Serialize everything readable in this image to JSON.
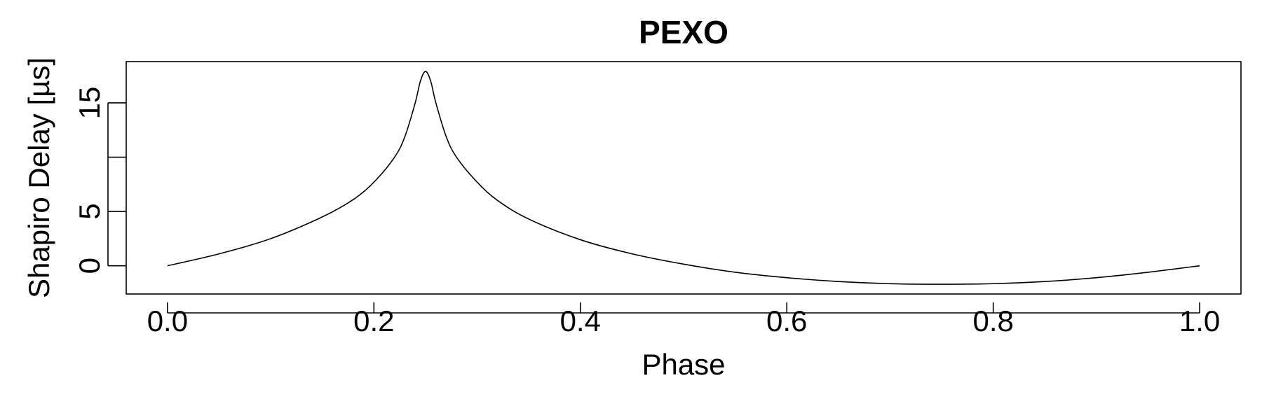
{
  "chart_data": {
    "type": "line",
    "title": "PEXO",
    "xlabel": "Phase",
    "ylabel": "Shapiro Delay [µs]",
    "xlim": [
      -0.04,
      1.04
    ],
    "ylim": [
      -2.6,
      18.8
    ],
    "x_ticks": [
      0.0,
      0.2,
      0.4,
      0.6,
      0.8,
      1.0
    ],
    "x_tick_labels": [
      "0.0",
      "0.2",
      "0.4",
      "0.6",
      "0.8",
      "1.0"
    ],
    "y_ticks": [
      0,
      5,
      10,
      15
    ],
    "y_tick_labels": [
      "0",
      "5",
      "",
      "15"
    ],
    "grid": false,
    "legend": "none",
    "series": [
      {
        "x": [
          0.0,
          0.05,
          0.1,
          0.15,
          0.18,
          0.2,
          0.22,
          0.23,
          0.24,
          0.245,
          0.25,
          0.255,
          0.26,
          0.27,
          0.28,
          0.3,
          0.32,
          0.35,
          0.4,
          0.45,
          0.5,
          0.55,
          0.6,
          0.65,
          0.7,
          0.75,
          0.8,
          0.85,
          0.9,
          0.95,
          1.0
        ],
        "y": [
          0.0,
          1.1,
          2.5,
          4.5,
          6.1,
          7.7,
          10.0,
          11.9,
          15.0,
          17.0,
          17.9,
          17.0,
          15.0,
          11.9,
          10.0,
          7.7,
          6.0,
          4.3,
          2.4,
          1.1,
          0.15,
          -0.6,
          -1.1,
          -1.45,
          -1.65,
          -1.7,
          -1.65,
          -1.45,
          -1.1,
          -0.6,
          0.0
        ]
      }
    ]
  }
}
